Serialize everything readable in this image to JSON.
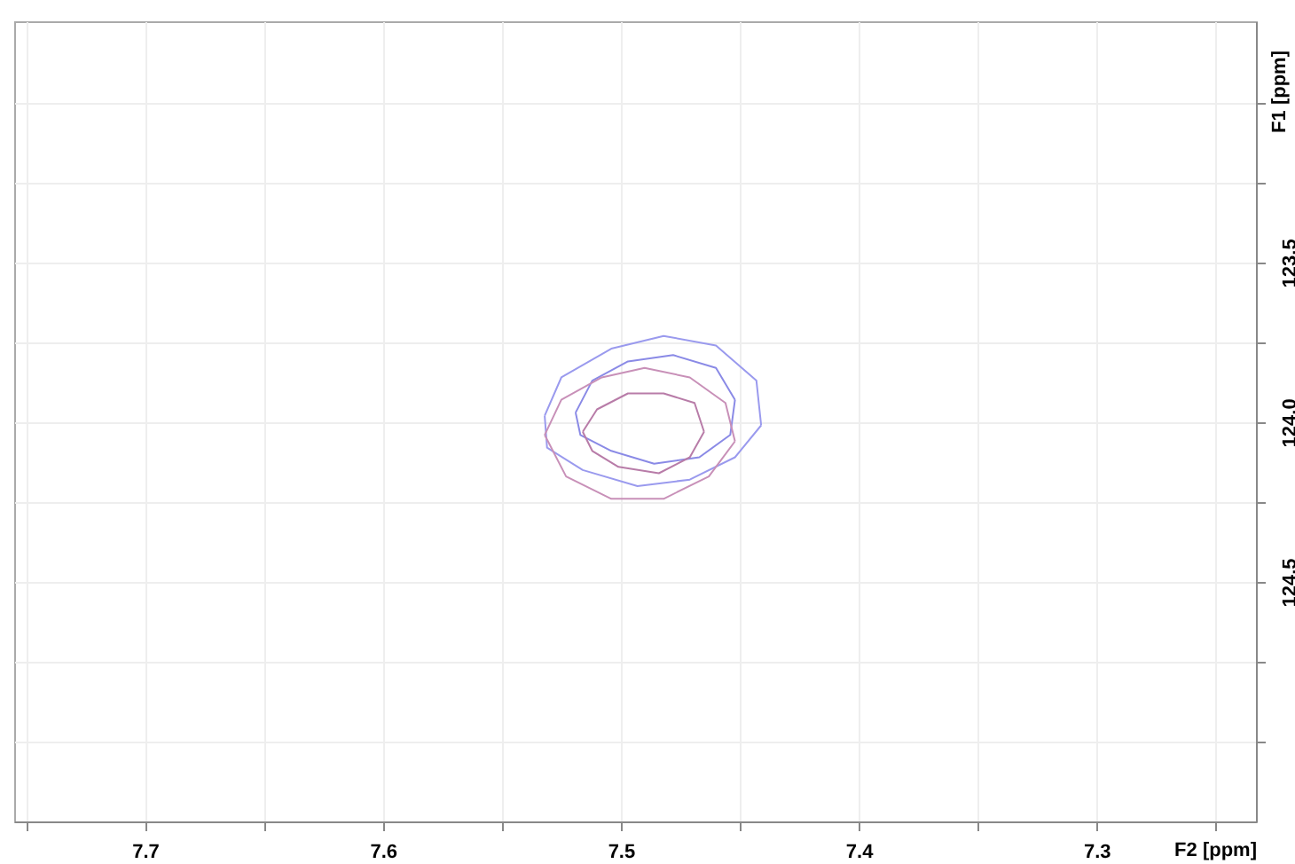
{
  "chart_data": {
    "type": "line",
    "xlabel": "F2 [ppm]",
    "ylabel": "F1 [ppm]",
    "xlim": [
      7.755,
      7.233
    ],
    "ylim": [
      125.25,
      122.745
    ],
    "xticks": [
      {
        "value": 7.75,
        "label": null
      },
      7.7,
      {
        "value": 7.65,
        "label": null
      },
      7.6,
      {
        "value": 7.55,
        "label": null
      },
      7.5,
      {
        "value": 7.45,
        "label": null
      },
      7.4,
      {
        "value": 7.35,
        "label": null
      },
      7.3,
      {
        "value": 7.25,
        "label": null
      }
    ],
    "yticks": [
      {
        "value": 123.0,
        "label": null
      },
      {
        "value": 123.25,
        "label": null
      },
      123.5,
      {
        "value": 123.75,
        "label": null
      },
      {
        "value": 124.0,
        "label": "124.0"
      },
      {
        "value": 124.25,
        "label": null
      },
      124.5,
      {
        "value": 124.75,
        "label": null
      },
      {
        "value": 125.0,
        "label": null
      }
    ],
    "grid": true,
    "tick_labels": "xy",
    "series": [
      {
        "color": "#9a9aee",
        "x": [
          7.532,
          7.525,
          7.504,
          7.482,
          7.46,
          7.443,
          7.441
        ],
        "values": [
          123.98,
          123.86,
          123.77,
          123.73,
          123.76,
          123.87,
          124.01
        ]
      },
      {
        "color": "#9a9aee",
        "x": [
          7.441,
          7.452,
          7.471,
          7.493,
          7.516,
          7.531,
          7.532
        ],
        "values": [
          124.01,
          124.11,
          124.18,
          124.2,
          124.15,
          124.08,
          123.98
        ]
      },
      {
        "color": "#8a8ae6",
        "x": [
          7.519,
          7.512,
          7.497,
          7.478,
          7.46,
          7.452
        ],
        "values": [
          123.97,
          123.87,
          123.81,
          123.79,
          123.83,
          123.93
        ]
      },
      {
        "color": "#8a8ae6",
        "x": [
          7.452,
          7.454,
          7.467,
          7.486,
          7.504,
          7.517,
          7.519
        ],
        "values": [
          123.93,
          124.04,
          124.11,
          124.13,
          124.09,
          124.04,
          123.97
        ]
      },
      {
        "color": "#c890b8",
        "x": [
          7.532,
          7.525,
          7.508,
          7.49,
          7.471,
          7.456,
          7.452
        ],
        "values": [
          124.04,
          123.93,
          123.86,
          123.83,
          123.86,
          123.94,
          124.06
        ]
      },
      {
        "color": "#c890b8",
        "x": [
          7.452,
          7.463,
          7.482,
          7.504,
          7.523,
          7.532
        ],
        "values": [
          124.06,
          124.17,
          124.24,
          124.24,
          124.17,
          124.04
        ]
      },
      {
        "color": "#b87ca8",
        "x": [
          7.516,
          7.51,
          7.497,
          7.482,
          7.469,
          7.465
        ],
        "values": [
          124.03,
          123.96,
          123.91,
          123.91,
          123.94,
          124.03
        ]
      },
      {
        "color": "#b87ca8",
        "x": [
          7.465,
          7.471,
          7.484,
          7.501,
          7.512,
          7.516
        ],
        "values": [
          124.03,
          124.11,
          124.16,
          124.14,
          124.09,
          124.03
        ]
      }
    ]
  }
}
